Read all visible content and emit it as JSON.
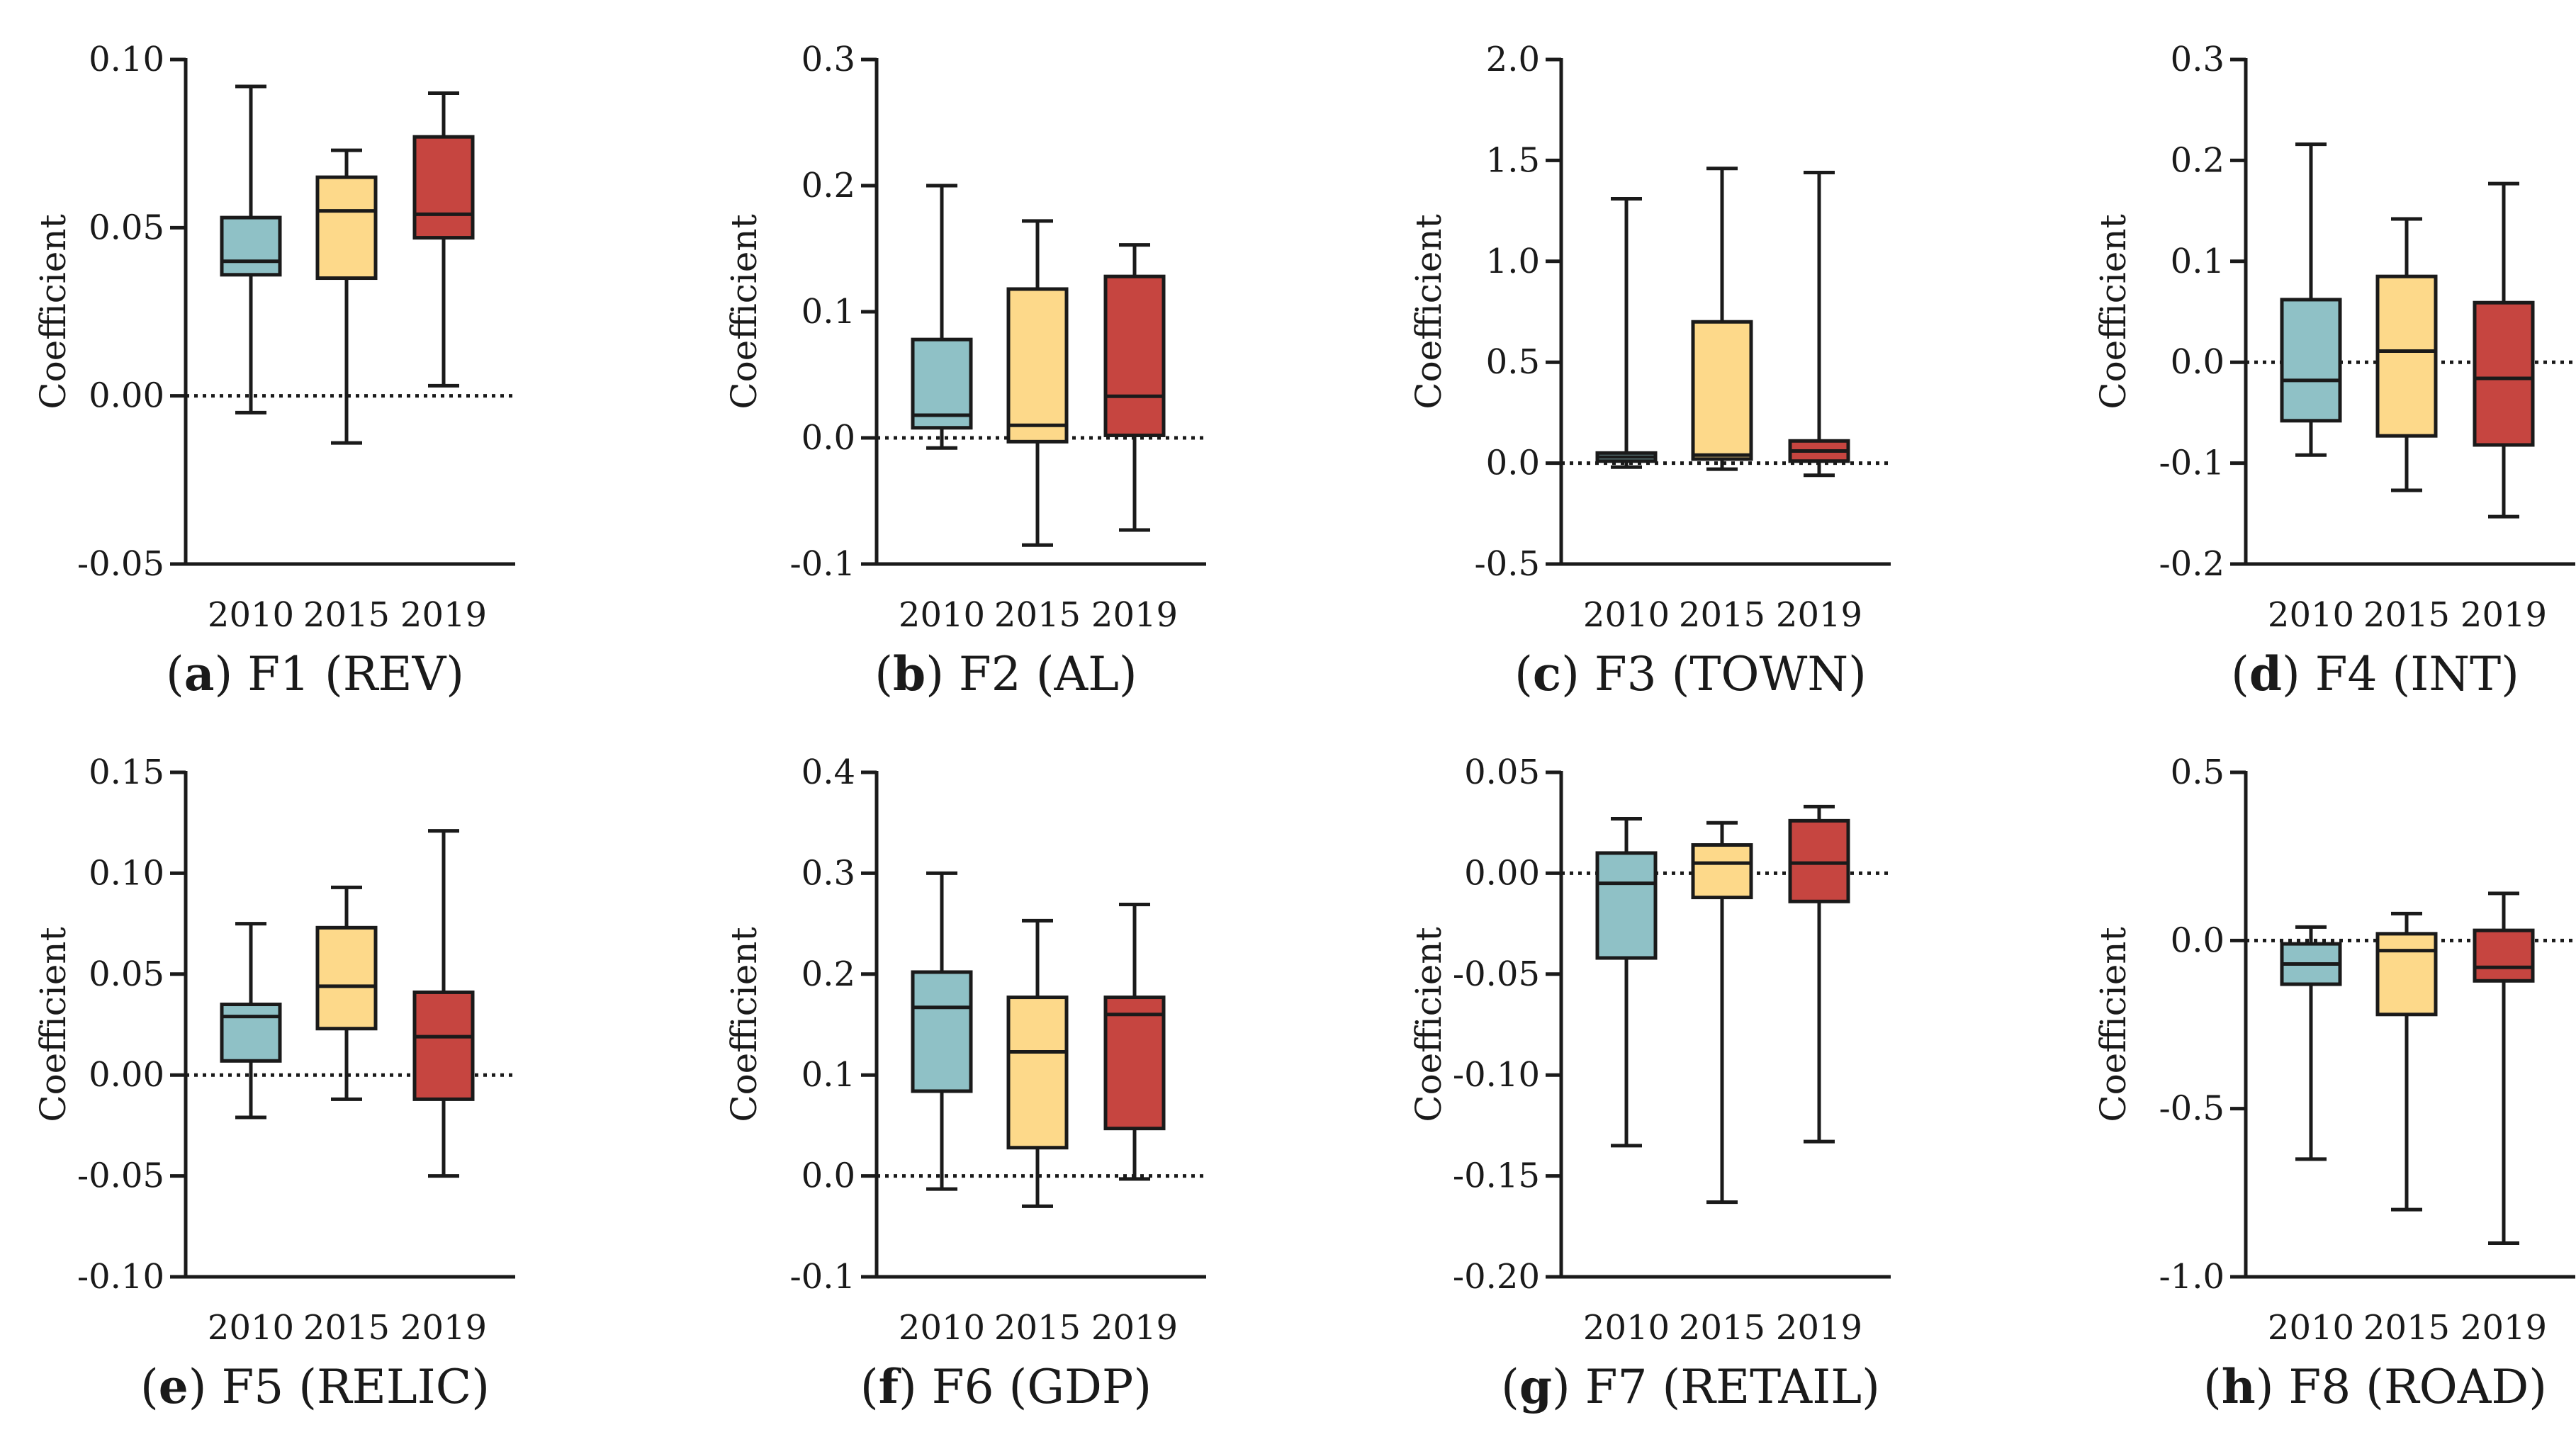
{
  "figure": {
    "ylabel": "Coefficient",
    "colors": {
      "2010": "#8fc1c6",
      "2015": "#fdd98a",
      "2019": "#c64540",
      "stroke": "#1a1a1a"
    }
  },
  "chart_data": [
    {
      "type": "boxplot",
      "letter": "a",
      "title": "F1 (REV)",
      "ylabel": "Coefficient",
      "categories": [
        "2010",
        "2015",
        "2019"
      ],
      "ylim": [
        -0.05,
        0.1
      ],
      "ticks": [
        0.1,
        0.05,
        0.0,
        -0.05
      ],
      "tick_labels": [
        "0.10",
        "0.05",
        "0.00",
        "-0.05"
      ],
      "reference_line": 0,
      "boxes": [
        {
          "year": "2010",
          "min": -0.005,
          "q1": 0.036,
          "median": 0.04,
          "q3": 0.053,
          "max": 0.092
        },
        {
          "year": "2015",
          "min": -0.014,
          "q1": 0.035,
          "median": 0.055,
          "q3": 0.065,
          "max": 0.073
        },
        {
          "year": "2019",
          "min": 0.003,
          "q1": 0.047,
          "median": 0.054,
          "q3": 0.077,
          "max": 0.09
        }
      ]
    },
    {
      "type": "boxplot",
      "letter": "b",
      "title": "F2 (AL)",
      "ylabel": "Coefficient",
      "categories": [
        "2010",
        "2015",
        "2019"
      ],
      "ylim": [
        -0.1,
        0.3
      ],
      "ticks": [
        0.3,
        0.2,
        0.1,
        0.0,
        -0.1
      ],
      "tick_labels": [
        "0.3",
        "0.2",
        "0.1",
        "0.0",
        "-0.1"
      ],
      "reference_line": 0,
      "boxes": [
        {
          "year": "2010",
          "min": -0.008,
          "q1": 0.008,
          "median": 0.018,
          "q3": 0.078,
          "max": 0.2
        },
        {
          "year": "2015",
          "min": -0.085,
          "q1": -0.003,
          "median": 0.01,
          "q3": 0.118,
          "max": 0.172
        },
        {
          "year": "2019",
          "min": -0.073,
          "q1": 0.002,
          "median": 0.033,
          "q3": 0.128,
          "max": 0.153
        }
      ]
    },
    {
      "type": "boxplot",
      "letter": "c",
      "title": "F3 (TOWN)",
      "ylabel": "Coefficient",
      "categories": [
        "2010",
        "2015",
        "2019"
      ],
      "ylim": [
        -0.5,
        2.0
      ],
      "ticks": [
        2.0,
        1.5,
        1.0,
        0.5,
        0.0,
        -0.5
      ],
      "tick_labels": [
        "2.0",
        "1.5",
        "1.0",
        "0.5",
        "0.0",
        "-0.5"
      ],
      "reference_line": 0,
      "boxes": [
        {
          "year": "2010",
          "min": -0.02,
          "q1": 0.01,
          "median": 0.03,
          "q3": 0.05,
          "max": 1.31
        },
        {
          "year": "2015",
          "min": -0.03,
          "q1": 0.02,
          "median": 0.04,
          "q3": 0.7,
          "max": 1.46
        },
        {
          "year": "2019",
          "min": -0.06,
          "q1": 0.01,
          "median": 0.06,
          "q3": 0.11,
          "max": 1.44
        }
      ]
    },
    {
      "type": "boxplot",
      "letter": "d",
      "title": "F4 (INT)",
      "ylabel": "Coefficient",
      "categories": [
        "2010",
        "2015",
        "2019"
      ],
      "ylim": [
        -0.2,
        0.3
      ],
      "ticks": [
        0.3,
        0.2,
        0.1,
        0.0,
        -0.1,
        -0.2
      ],
      "tick_labels": [
        "0.3",
        "0.2",
        "0.1",
        "0.0",
        "-0.1",
        "-0.2"
      ],
      "reference_line": 0,
      "boxes": [
        {
          "year": "2010",
          "min": -0.092,
          "q1": -0.058,
          "median": -0.018,
          "q3": 0.062,
          "max": 0.216
        },
        {
          "year": "2015",
          "min": -0.127,
          "q1": -0.073,
          "median": 0.011,
          "q3": 0.085,
          "max": 0.142
        },
        {
          "year": "2019",
          "min": -0.153,
          "q1": -0.082,
          "median": -0.016,
          "q3": 0.059,
          "max": 0.177
        }
      ]
    },
    {
      "type": "boxplot",
      "letter": "e",
      "title": "F5 (RELIC)",
      "ylabel": "Coefficient",
      "categories": [
        "2010",
        "2015",
        "2019"
      ],
      "ylim": [
        -0.1,
        0.15
      ],
      "ticks": [
        0.15,
        0.1,
        0.05,
        0.0,
        -0.05,
        -0.1
      ],
      "tick_labels": [
        "0.15",
        "0.10",
        "0.05",
        "0.00",
        "-0.05",
        "-0.10"
      ],
      "reference_line": 0,
      "boxes": [
        {
          "year": "2010",
          "min": -0.021,
          "q1": 0.007,
          "median": 0.029,
          "q3": 0.035,
          "max": 0.075
        },
        {
          "year": "2015",
          "min": -0.012,
          "q1": 0.023,
          "median": 0.044,
          "q3": 0.073,
          "max": 0.093
        },
        {
          "year": "2019",
          "min": -0.05,
          "q1": -0.012,
          "median": 0.019,
          "q3": 0.041,
          "max": 0.121
        }
      ]
    },
    {
      "type": "boxplot",
      "letter": "f",
      "title": "F6 (GDP)",
      "ylabel": "Coefficient",
      "categories": [
        "2010",
        "2015",
        "2019"
      ],
      "ylim": [
        -0.1,
        0.4
      ],
      "ticks": [
        0.4,
        0.3,
        0.2,
        0.1,
        0.0,
        -0.1
      ],
      "tick_labels": [
        "0.4",
        "0.3",
        "0.2",
        "0.1",
        "0.0",
        "-0.1"
      ],
      "reference_line": 0,
      "boxes": [
        {
          "year": "2010",
          "min": -0.013,
          "q1": 0.084,
          "median": 0.167,
          "q3": 0.202,
          "max": 0.3
        },
        {
          "year": "2015",
          "min": -0.03,
          "q1": 0.028,
          "median": 0.123,
          "q3": 0.177,
          "max": 0.253
        },
        {
          "year": "2019",
          "min": -0.003,
          "q1": 0.047,
          "median": 0.16,
          "q3": 0.177,
          "max": 0.269
        }
      ]
    },
    {
      "type": "boxplot",
      "letter": "g",
      "title": "F7 (RETAIL)",
      "ylabel": "Coefficient",
      "categories": [
        "2010",
        "2015",
        "2019"
      ],
      "ylim": [
        -0.2,
        0.05
      ],
      "ticks": [
        0.05,
        0.0,
        -0.05,
        -0.1,
        -0.15,
        -0.2
      ],
      "tick_labels": [
        "0.05",
        "0.00",
        "-0.05",
        "-0.10",
        "-0.15",
        "-0.20"
      ],
      "reference_line": 0,
      "boxes": [
        {
          "year": "2010",
          "min": -0.135,
          "q1": -0.042,
          "median": -0.005,
          "q3": 0.01,
          "max": 0.027
        },
        {
          "year": "2015",
          "min": -0.163,
          "q1": -0.012,
          "median": 0.005,
          "q3": 0.014,
          "max": 0.025
        },
        {
          "year": "2019",
          "min": -0.133,
          "q1": -0.014,
          "median": 0.005,
          "q3": 0.026,
          "max": 0.033
        }
      ]
    },
    {
      "type": "boxplot",
      "letter": "h",
      "title": "F8 (ROAD)",
      "ylabel": "Coefficient",
      "categories": [
        "2010",
        "2015",
        "2019"
      ],
      "ylim": [
        -1.0,
        0.5
      ],
      "ticks": [
        0.5,
        0.0,
        -0.5,
        -1.0
      ],
      "tick_labels": [
        "0.5",
        "0.0",
        "-0.5",
        "-1.0"
      ],
      "reference_line": 0,
      "boxes": [
        {
          "year": "2010",
          "min": -0.65,
          "q1": -0.13,
          "median": -0.07,
          "q3": -0.01,
          "max": 0.04
        },
        {
          "year": "2015",
          "min": -0.8,
          "q1": -0.22,
          "median": -0.03,
          "q3": 0.02,
          "max": 0.08
        },
        {
          "year": "2019",
          "min": -0.9,
          "q1": -0.12,
          "median": -0.08,
          "q3": 0.03,
          "max": 0.14
        }
      ]
    }
  ]
}
